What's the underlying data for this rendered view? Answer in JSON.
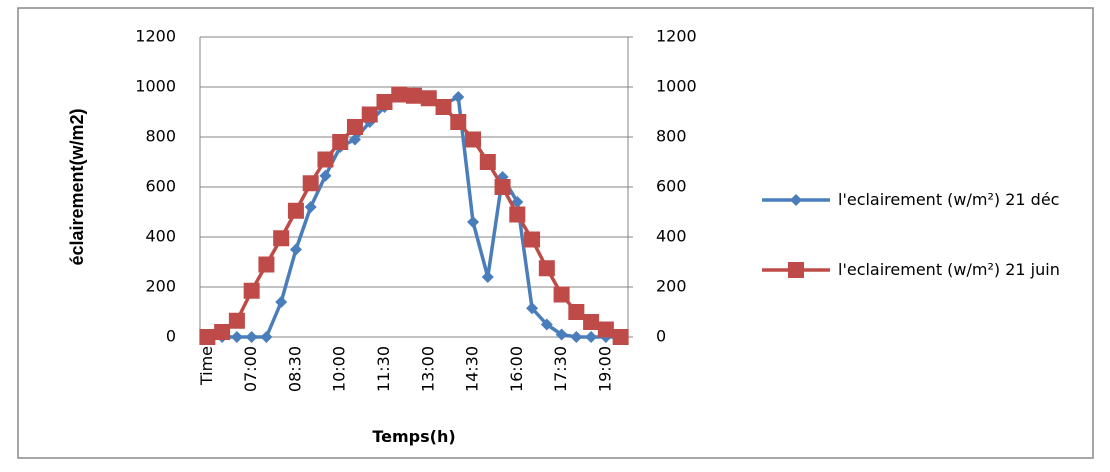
{
  "chart_data": {
    "type": "line",
    "x_label": "Temps(h)",
    "y_label": "éclairement(w/m2)",
    "categories": [
      "Time",
      null,
      null,
      "07:00",
      null,
      null,
      "08:30",
      null,
      null,
      "10:00",
      null,
      null,
      "11:30",
      null,
      null,
      "13:00",
      null,
      null,
      "14:30",
      null,
      null,
      "16:00",
      null,
      null,
      "17:30",
      null,
      null,
      "19:00",
      null
    ],
    "series": [
      {
        "name": "l'eclairement (w/m²) 21 déc",
        "color": "#4a7ebb",
        "marker": "diamond",
        "values": [
          0,
          0,
          0,
          0,
          0,
          140,
          350,
          520,
          645,
          760,
          790,
          860,
          920,
          970,
          975,
          960,
          930,
          960,
          460,
          240,
          640,
          540,
          115,
          50,
          10,
          0,
          0,
          0,
          0
        ]
      },
      {
        "name": "l'eclairement (w/m²) 21 juin",
        "color": "#be4b48",
        "marker": "square",
        "axis": "y2",
        "values": [
          0,
          20,
          65,
          185,
          290,
          395,
          505,
          615,
          710,
          780,
          840,
          890,
          940,
          970,
          965,
          955,
          920,
          860,
          790,
          700,
          600,
          490,
          390,
          275,
          170,
          100,
          60,
          30,
          0
        ]
      }
    ],
    "ylim": [
      0,
      1200
    ],
    "yticks": [
      0,
      200,
      400,
      600,
      800,
      1000,
      1200
    ],
    "y2lim": [
      0,
      1200
    ],
    "y2ticks": [
      0,
      200,
      400,
      600,
      800,
      1000,
      1200
    ],
    "grid": true,
    "legend": "right"
  }
}
